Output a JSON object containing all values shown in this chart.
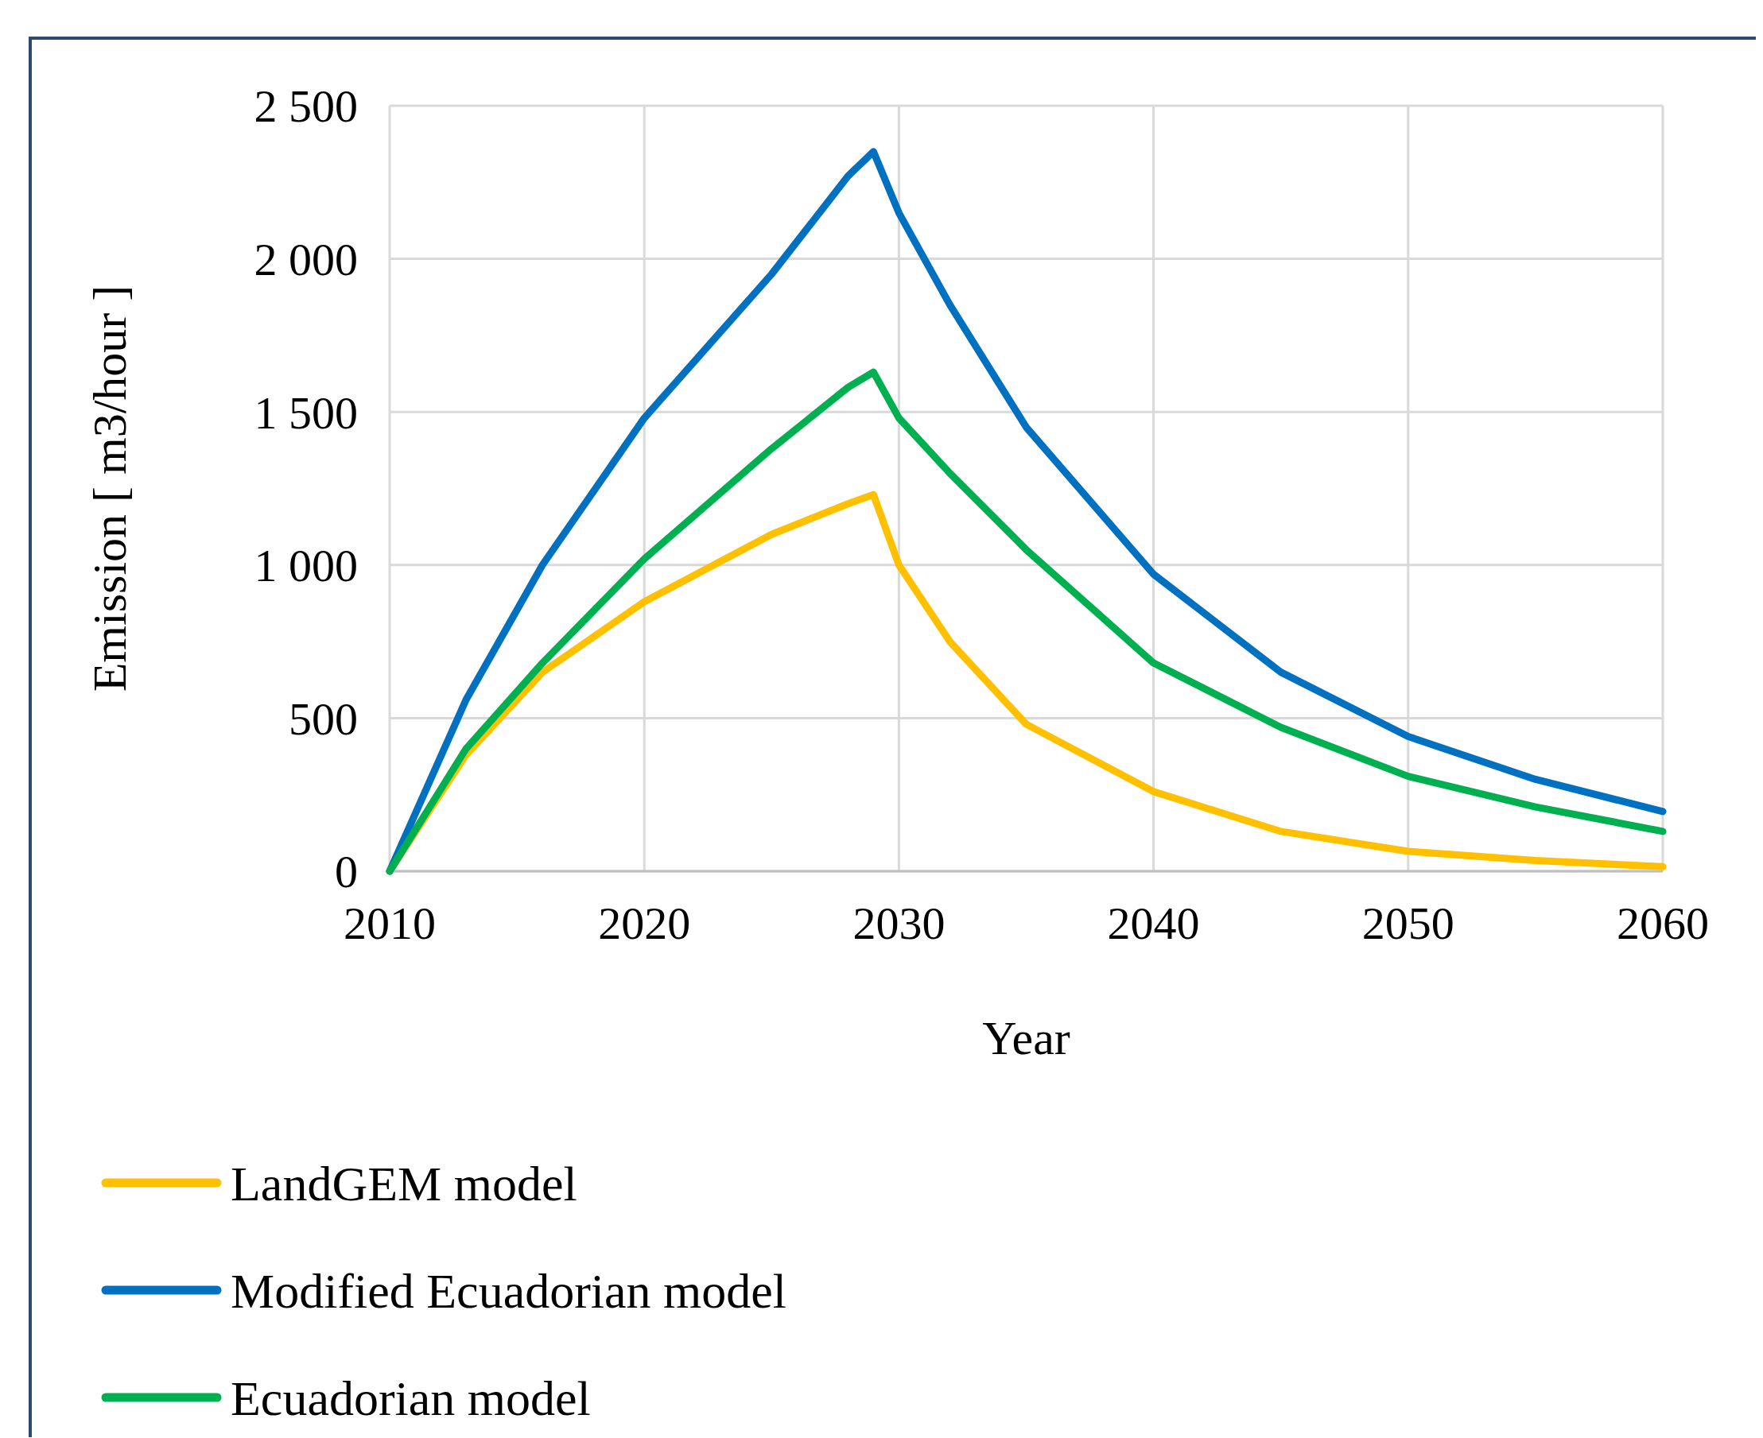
{
  "chart_data": {
    "type": "line",
    "xlabel": "Year",
    "ylabel": "Emission [ m3/hour ]",
    "xlim": [
      2010,
      2060
    ],
    "xticks": [
      2010,
      2020,
      2030,
      2040,
      2050,
      2060
    ],
    "ylim": [
      0,
      2500
    ],
    "yticks": [
      0,
      500,
      {
        "value": 1000,
        "label": "1 000"
      },
      {
        "value": 1500,
        "label": "1 500"
      },
      {
        "value": 2000,
        "label": "2 000"
      },
      {
        "value": 2500,
        "label": "2 500"
      }
    ],
    "grid": true,
    "legend": "bottom",
    "marker": "none",
    "line_style": "solid",
    "series": [
      {
        "name": "LandGEM model",
        "color": "#ffc000",
        "x": [
          2010,
          2013,
          2016,
          2020,
          2025,
          2028,
          2029,
          2030,
          2032,
          2035,
          2040,
          2045,
          2050,
          2055,
          2060
        ],
        "values": [
          0,
          380,
          650,
          880,
          1100,
          1200,
          1230,
          1000,
          750,
          480,
          260,
          130,
          65,
          35,
          15
        ]
      },
      {
        "name": "Modified Ecuadorian model",
        "color": "#0070c0",
        "x": [
          2010,
          2013,
          2016,
          2020,
          2025,
          2028,
          2029,
          2030,
          2032,
          2035,
          2040,
          2045,
          2050,
          2055,
          2060
        ],
        "values": [
          0,
          560,
          1000,
          1480,
          1950,
          2270,
          2350,
          2150,
          1850,
          1450,
          970,
          650,
          440,
          300,
          195
        ]
      },
      {
        "name": "Ecuadorian model",
        "color": "#00b050",
        "x": [
          2010,
          2013,
          2016,
          2020,
          2025,
          2028,
          2029,
          2030,
          2032,
          2035,
          2040,
          2045,
          2050,
          2055,
          2060
        ],
        "values": [
          0,
          400,
          680,
          1020,
          1380,
          1580,
          1630,
          1480,
          1300,
          1050,
          680,
          470,
          310,
          210,
          130
        ]
      }
    ]
  }
}
